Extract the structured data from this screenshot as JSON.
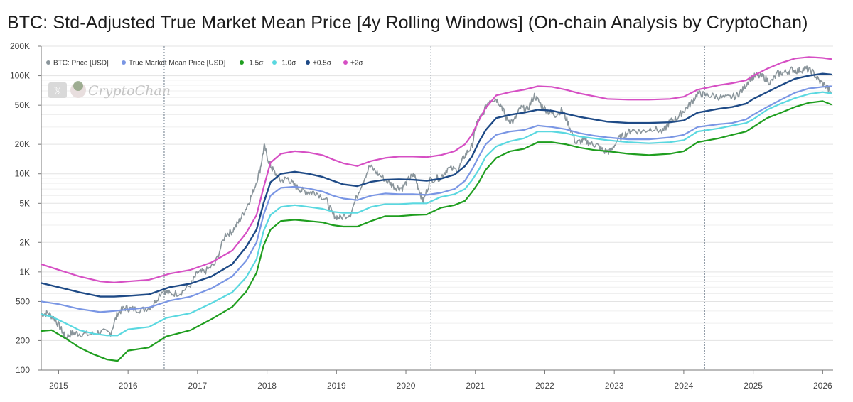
{
  "header": {
    "title": "BTC: Std-Adjusted True Market Mean Price [4y Rolling Windows] (On-chain Analysis by CryptoChan)"
  },
  "watermark": {
    "text": "CryptoChan",
    "x_badge": "𝕏"
  },
  "chart_data": {
    "type": "line",
    "yscale": "log",
    "ylim": [
      100,
      200000
    ],
    "xlim": [
      2014.75,
      2026.15
    ],
    "grid": true,
    "legend_position": "top-left",
    "yticks": [
      {
        "value": 100,
        "label": "100"
      },
      {
        "value": 200,
        "label": "200"
      },
      {
        "value": 500,
        "label": "500"
      },
      {
        "value": 1000,
        "label": "1K"
      },
      {
        "value": 2000,
        "label": "2K"
      },
      {
        "value": 5000,
        "label": "5K"
      },
      {
        "value": 10000,
        "label": "10K"
      },
      {
        "value": 20000,
        "label": "20K"
      },
      {
        "value": 50000,
        "label": "50K"
      },
      {
        "value": 100000,
        "label": "100K"
      },
      {
        "value": 200000,
        "label": "200K"
      }
    ],
    "xticks": [
      {
        "value": 2015,
        "label": "2015"
      },
      {
        "value": 2016,
        "label": "2016"
      },
      {
        "value": 2017,
        "label": "2017"
      },
      {
        "value": 2018,
        "label": "2018"
      },
      {
        "value": 2019,
        "label": "2019"
      },
      {
        "value": 2020,
        "label": "2020"
      },
      {
        "value": 2021,
        "label": "2021"
      },
      {
        "value": 2022,
        "label": "2022"
      },
      {
        "value": 2023,
        "label": "2023"
      },
      {
        "value": 2024,
        "label": "2024"
      },
      {
        "value": 2025,
        "label": "2025"
      },
      {
        "value": 2026,
        "label": "2026"
      }
    ],
    "halving_lines": [
      2016.52,
      2020.36,
      2024.3
    ],
    "series": [
      {
        "name": "BTC: Price [USD]",
        "color": "#8a959b",
        "width": 1.6,
        "jitter": true,
        "x": [
          2014.75,
          2014.85,
          2014.95,
          2015.05,
          2015.1,
          2015.2,
          2015.3,
          2015.45,
          2015.6,
          2015.75,
          2015.85,
          2015.95,
          2016.05,
          2016.2,
          2016.35,
          2016.5,
          2016.6,
          2016.75,
          2016.9,
          2017.0,
          2017.1,
          2017.25,
          2017.4,
          2017.5,
          2017.6,
          2017.7,
          2017.8,
          2017.9,
          2017.96,
          2018.03,
          2018.1,
          2018.2,
          2018.3,
          2018.4,
          2018.5,
          2018.6,
          2018.7,
          2018.85,
          2018.95,
          2019.05,
          2019.2,
          2019.35,
          2019.48,
          2019.6,
          2019.75,
          2019.85,
          2019.95,
          2020.05,
          2020.12,
          2020.2,
          2020.25,
          2020.35,
          2020.5,
          2020.6,
          2020.75,
          2020.85,
          2020.95,
          2021.02,
          2021.1,
          2021.2,
          2021.3,
          2021.38,
          2021.45,
          2021.55,
          2021.65,
          2021.75,
          2021.85,
          2021.95,
          2022.05,
          2022.15,
          2022.25,
          2022.35,
          2022.45,
          2022.55,
          2022.65,
          2022.75,
          2022.85,
          2022.95,
          2023.05,
          2023.15,
          2023.25,
          2023.4,
          2023.55,
          2023.7,
          2023.8,
          2023.9,
          2024.0,
          2024.1,
          2024.2,
          2024.3,
          2024.45,
          2024.6,
          2024.75,
          2024.85,
          2024.95,
          2025.05,
          2025.15,
          2025.25,
          2025.35,
          2025.45,
          2025.55,
          2025.65,
          2025.75,
          2025.85,
          2025.95,
          2026.05,
          2026.12
        ],
        "y": [
          370,
          380,
          330,
          250,
          215,
          240,
          235,
          230,
          245,
          240,
          380,
          430,
          420,
          410,
          450,
          660,
          600,
          610,
          740,
          980,
          1000,
          1200,
          2400,
          2600,
          3300,
          4500,
          6500,
          11000,
          19000,
          13000,
          10500,
          8500,
          9000,
          7500,
          6800,
          6500,
          6500,
          5500,
          3800,
          3550,
          3900,
          7500,
          12000,
          10000,
          8200,
          7300,
          7200,
          9000,
          9800,
          6500,
          5200,
          8700,
          9200,
          11300,
          11000,
          15500,
          19000,
          33000,
          40000,
          57000,
          58000,
          49000,
          36000,
          34000,
          47000,
          45000,
          63000,
          50000,
          43000,
          40000,
          45000,
          31000,
          20500,
          22000,
          20500,
          19600,
          17000,
          16800,
          22500,
          25000,
          28000,
          27000,
          29200,
          26800,
          34000,
          37000,
          44000,
          52000,
          66000,
          64000,
          62000,
          59000,
          62000,
          72000,
          94000,
          100000,
          97000,
          85000,
          105000,
          108000,
          115000,
          112000,
          118000,
          110000,
          88000,
          78000,
          67000
        ]
      },
      {
        "name": "True Market Mean Price [USD]",
        "color": "#7a96e4",
        "width": 2.2,
        "x": [
          2014.75,
          2015.0,
          2015.3,
          2015.6,
          2015.8,
          2016.0,
          2016.3,
          2016.6,
          2016.9,
          2017.2,
          2017.5,
          2017.7,
          2017.85,
          2017.95,
          2018.05,
          2018.2,
          2018.4,
          2018.6,
          2018.8,
          2018.95,
          2019.1,
          2019.3,
          2019.5,
          2019.7,
          2019.9,
          2020.1,
          2020.3,
          2020.5,
          2020.7,
          2020.85,
          2020.95,
          2021.05,
          2021.15,
          2021.3,
          2021.5,
          2021.7,
          2021.9,
          2022.1,
          2022.3,
          2022.5,
          2022.7,
          2022.9,
          2023.2,
          2023.5,
          2023.8,
          2024.0,
          2024.2,
          2024.5,
          2024.7,
          2024.9,
          2025.0,
          2025.2,
          2025.4,
          2025.6,
          2025.8,
          2026.0,
          2026.12
        ],
        "y": [
          500,
          470,
          420,
          390,
          400,
          415,
          435,
          510,
          560,
          680,
          900,
          1300,
          2000,
          3800,
          6000,
          7200,
          7400,
          7100,
          6600,
          6000,
          5600,
          5400,
          6000,
          6300,
          6200,
          6200,
          6100,
          6400,
          7000,
          8500,
          11000,
          15000,
          20000,
          25000,
          27000,
          28000,
          31000,
          30000,
          28500,
          26000,
          24500,
          23500,
          22500,
          22500,
          23500,
          25000,
          30000,
          32000,
          33000,
          36000,
          40000,
          48000,
          57000,
          67000,
          74000,
          77000,
          78000
        ]
      },
      {
        "name": "-1.5σ",
        "color": "#1f9e1f",
        "width": 2.2,
        "x": [
          2014.75,
          2014.9,
          2015.1,
          2015.3,
          2015.5,
          2015.7,
          2015.85,
          2016.0,
          2016.3,
          2016.55,
          2016.9,
          2017.2,
          2017.5,
          2017.7,
          2017.85,
          2017.95,
          2018.05,
          2018.2,
          2018.4,
          2018.6,
          2018.8,
          2018.95,
          2019.1,
          2019.3,
          2019.5,
          2019.7,
          2019.9,
          2020.1,
          2020.3,
          2020.5,
          2020.7,
          2020.85,
          2020.95,
          2021.05,
          2021.15,
          2021.3,
          2021.5,
          2021.7,
          2021.9,
          2022.1,
          2022.3,
          2022.5,
          2022.7,
          2022.9,
          2023.2,
          2023.5,
          2023.8,
          2024.0,
          2024.2,
          2024.5,
          2024.7,
          2024.9,
          2025.0,
          2025.2,
          2025.4,
          2025.6,
          2025.8,
          2026.0,
          2026.12
        ],
        "y": [
          250,
          255,
          210,
          170,
          145,
          128,
          124,
          158,
          170,
          220,
          255,
          330,
          440,
          630,
          980,
          1850,
          2700,
          3300,
          3400,
          3300,
          3200,
          3000,
          2900,
          2900,
          3300,
          3700,
          3700,
          3800,
          3850,
          4500,
          4800,
          5300,
          6500,
          8200,
          11000,
          14500,
          17000,
          18000,
          21000,
          21000,
          20000,
          18500,
          17500,
          17000,
          16000,
          15500,
          16000,
          17000,
          21000,
          23000,
          25000,
          27000,
          30000,
          37000,
          42000,
          48000,
          53000,
          55000,
          51000
        ]
      },
      {
        "name": "-1.0σ",
        "color": "#5ad8e0",
        "width": 2.2,
        "x": [
          2014.75,
          2014.9,
          2015.1,
          2015.3,
          2015.5,
          2015.7,
          2015.85,
          2016.0,
          2016.3,
          2016.55,
          2016.9,
          2017.2,
          2017.5,
          2017.7,
          2017.85,
          2017.95,
          2018.05,
          2018.2,
          2018.4,
          2018.6,
          2018.8,
          2018.95,
          2019.1,
          2019.3,
          2019.5,
          2019.7,
          2019.9,
          2020.1,
          2020.3,
          2020.5,
          2020.7,
          2020.85,
          2020.95,
          2021.05,
          2021.15,
          2021.3,
          2021.5,
          2021.7,
          2021.9,
          2022.1,
          2022.3,
          2022.5,
          2022.7,
          2022.9,
          2023.2,
          2023.5,
          2023.8,
          2024.0,
          2024.2,
          2024.5,
          2024.7,
          2024.9,
          2025.0,
          2025.2,
          2025.4,
          2025.6,
          2025.8,
          2026.0,
          2026.12
        ],
        "y": [
          370,
          350,
          300,
          255,
          235,
          225,
          225,
          260,
          275,
          340,
          380,
          480,
          620,
          880,
          1350,
          2600,
          3800,
          4600,
          4800,
          4600,
          4400,
          4100,
          4000,
          4000,
          4600,
          4900,
          4900,
          5000,
          5000,
          5800,
          6200,
          7000,
          8600,
          11000,
          15000,
          19000,
          21500,
          23000,
          27000,
          27000,
          26000,
          24000,
          23000,
          22000,
          21000,
          20500,
          21000,
          22000,
          27000,
          29000,
          31000,
          33000,
          36000,
          45000,
          52000,
          59000,
          65000,
          68000,
          66000
        ]
      },
      {
        "name": "+0.5σ",
        "color": "#1e4a86",
        "width": 2.4,
        "x": [
          2014.75,
          2015.0,
          2015.3,
          2015.6,
          2015.8,
          2016.0,
          2016.3,
          2016.6,
          2016.9,
          2017.2,
          2017.5,
          2017.7,
          2017.85,
          2017.95,
          2018.05,
          2018.2,
          2018.4,
          2018.6,
          2018.8,
          2018.95,
          2019.1,
          2019.3,
          2019.5,
          2019.7,
          2019.9,
          2020.1,
          2020.3,
          2020.5,
          2020.7,
          2020.85,
          2020.95,
          2021.05,
          2021.15,
          2021.3,
          2021.5,
          2021.7,
          2021.9,
          2022.1,
          2022.3,
          2022.5,
          2022.7,
          2022.9,
          2023.2,
          2023.5,
          2023.8,
          2024.0,
          2024.2,
          2024.5,
          2024.7,
          2024.9,
          2025.0,
          2025.2,
          2025.4,
          2025.6,
          2025.8,
          2026.0,
          2026.12
        ],
        "y": [
          770,
          700,
          620,
          560,
          560,
          570,
          590,
          700,
          760,
          900,
          1200,
          1800,
          2700,
          5000,
          8200,
          10000,
          10500,
          10000,
          9300,
          8500,
          7800,
          7500,
          8300,
          8700,
          8800,
          8700,
          8500,
          8900,
          9800,
          12000,
          15000,
          21000,
          28000,
          37000,
          40000,
          42000,
          45000,
          44000,
          41000,
          38000,
          36000,
          34000,
          33000,
          33000,
          33500,
          35000,
          42000,
          46000,
          48000,
          52000,
          58000,
          68000,
          80000,
          93000,
          100000,
          105000,
          103000
        ]
      },
      {
        "name": "+2σ",
        "color": "#d64fc4",
        "width": 2.2,
        "x": [
          2014.75,
          2015.0,
          2015.3,
          2015.6,
          2015.8,
          2016.0,
          2016.3,
          2016.6,
          2016.9,
          2017.2,
          2017.5,
          2017.7,
          2017.85,
          2017.95,
          2018.05,
          2018.2,
          2018.4,
          2018.6,
          2018.8,
          2018.95,
          2019.1,
          2019.3,
          2019.5,
          2019.7,
          2019.9,
          2020.1,
          2020.3,
          2020.5,
          2020.7,
          2020.85,
          2020.95,
          2021.05,
          2021.15,
          2021.3,
          2021.5,
          2021.7,
          2021.9,
          2022.1,
          2022.3,
          2022.5,
          2022.7,
          2022.9,
          2023.2,
          2023.5,
          2023.8,
          2024.0,
          2024.2,
          2024.5,
          2024.7,
          2024.9,
          2025.0,
          2025.2,
          2025.4,
          2025.6,
          2025.8,
          2026.0,
          2026.12
        ],
        "y": [
          1200,
          1050,
          900,
          800,
          780,
          800,
          830,
          960,
          1050,
          1250,
          1650,
          2500,
          3800,
          7200,
          13000,
          16000,
          17000,
          16500,
          15500,
          14000,
          12800,
          12000,
          13500,
          14500,
          15000,
          15000,
          14800,
          15500,
          17000,
          20000,
          25000,
          35000,
          47000,
          63000,
          68000,
          72000,
          78000,
          77000,
          72000,
          66000,
          62000,
          58000,
          57000,
          57000,
          58000,
          61000,
          72000,
          80000,
          84000,
          90000,
          100000,
          118000,
          135000,
          150000,
          155000,
          152000,
          148000
        ]
      }
    ]
  }
}
